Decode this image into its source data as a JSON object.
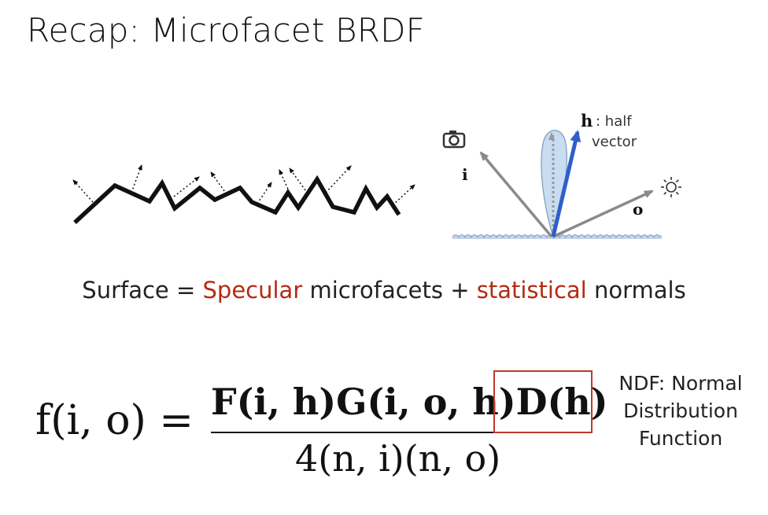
{
  "title": "Recap: Microfacet BRDF",
  "diagram": {
    "labels": {
      "h": "h",
      "h_desc_1": ": half",
      "h_desc_2": "vector",
      "i": "i",
      "o": "o"
    },
    "icons": [
      "camera-icon",
      "sun-icon"
    ],
    "colors": {
      "half_vector": "#2f5fc9",
      "lobe_fill": "#c8dcf2",
      "arrow_gray": "#8a8a8a"
    }
  },
  "caption": {
    "part1": "Surface = ",
    "specular": "Specular",
    "part2": " microfacets + ",
    "statistical": "statistical",
    "part3": " normals",
    "accent_color": "#b52a12"
  },
  "formula": {
    "lhs": "f(i, o) =",
    "numerator_fg": "F(i, h)G(i, o, h)",
    "numerator_d": "D(h)",
    "denominator": "4(n, i)(n, o)"
  },
  "ndf": {
    "line1": "NDF: Normal",
    "line2": "Distribution",
    "line3": "Function",
    "box_color": "#c0392b"
  }
}
